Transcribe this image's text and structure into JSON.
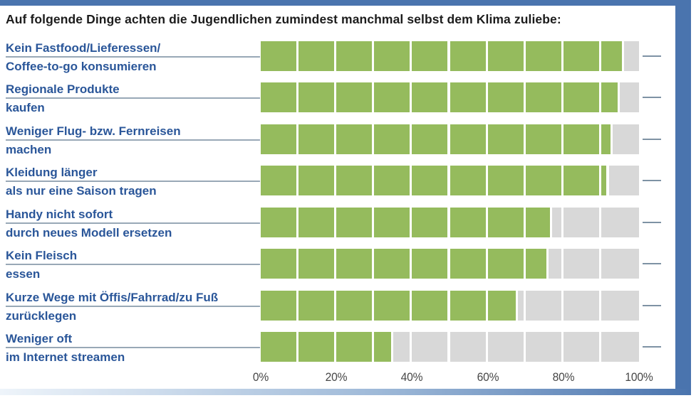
{
  "title": "Auf folgende Dinge achten die Jugendlichen zumindest manchmal selbst dem Klima zuliebe:",
  "colors": {
    "bar_green": "#95bb5d",
    "bar_gray": "#d8d8d8",
    "frame_blue": "#4a74ae",
    "frame_gradient_light": "#eef4fa",
    "frame_gradient_mid": "#9eb9d8",
    "label_blue": "#2a5699",
    "underline_gray_blue": "#98a8b6",
    "tick_dash": "#7e92a4",
    "axis_text": "#474747",
    "title_text": "#1c1c1c"
  },
  "rows": [
    {
      "label_line1": "Kein Fastfood/Lieferessen/",
      "label_line2": "Coffee-to-go konsumieren"
    },
    {
      "label_line1": "Regionale Produkte",
      "label_line2": "kaufen"
    },
    {
      "label_line1": "Weniger Flug- bzw. Fernreisen",
      "label_line2": "machen"
    },
    {
      "label_line1": "Kleidung länger",
      "label_line2": "als nur eine Saison tragen"
    },
    {
      "label_line1": "Handy nicht sofort",
      "label_line2": "durch neues Modell ersetzen"
    },
    {
      "label_line1": "Kein Fleisch",
      "label_line2": "essen"
    },
    {
      "label_line1": "Kurze Wege mit Öffis/Fahrrad/zu Fuß",
      "label_line2": "zurücklegen"
    },
    {
      "label_line1": "Weniger oft",
      "label_line2": "im Internet streamen"
    }
  ],
  "chart_data": {
    "type": "bar",
    "orientation": "horizontal",
    "title": "Auf folgende Dinge achten die Jugendlichen zumindest manchmal selbst dem Klima zuliebe:",
    "categories": [
      "Kein Fastfood/Lieferessen/ Coffee-to-go konsumieren",
      "Regionale Produkte kaufen",
      "Weniger Flug- bzw. Fernreisen machen",
      "Kleidung länger als nur eine Saison tragen",
      "Handy nicht sofort durch neues Modell ersetzen",
      "Kein Fleisch essen",
      "Kurze Wege mit Öffis/Fahrrad/zu Fuß zurücklegen",
      "Weniger oft im Internet streamen"
    ],
    "values": [
      96,
      95,
      93,
      92,
      77,
      76,
      68,
      35
    ],
    "unit": "%",
    "xlabel": "",
    "ylabel": "",
    "x_axis": {
      "ticks": [
        "0%",
        "20%",
        "40%",
        "60%",
        "80%",
        "100%"
      ],
      "tick_values": [
        0,
        20,
        40,
        60,
        80,
        100
      ],
      "range": [
        0,
        100
      ]
    },
    "segment_step_percent": 10,
    "grid": false,
    "legend": false
  }
}
